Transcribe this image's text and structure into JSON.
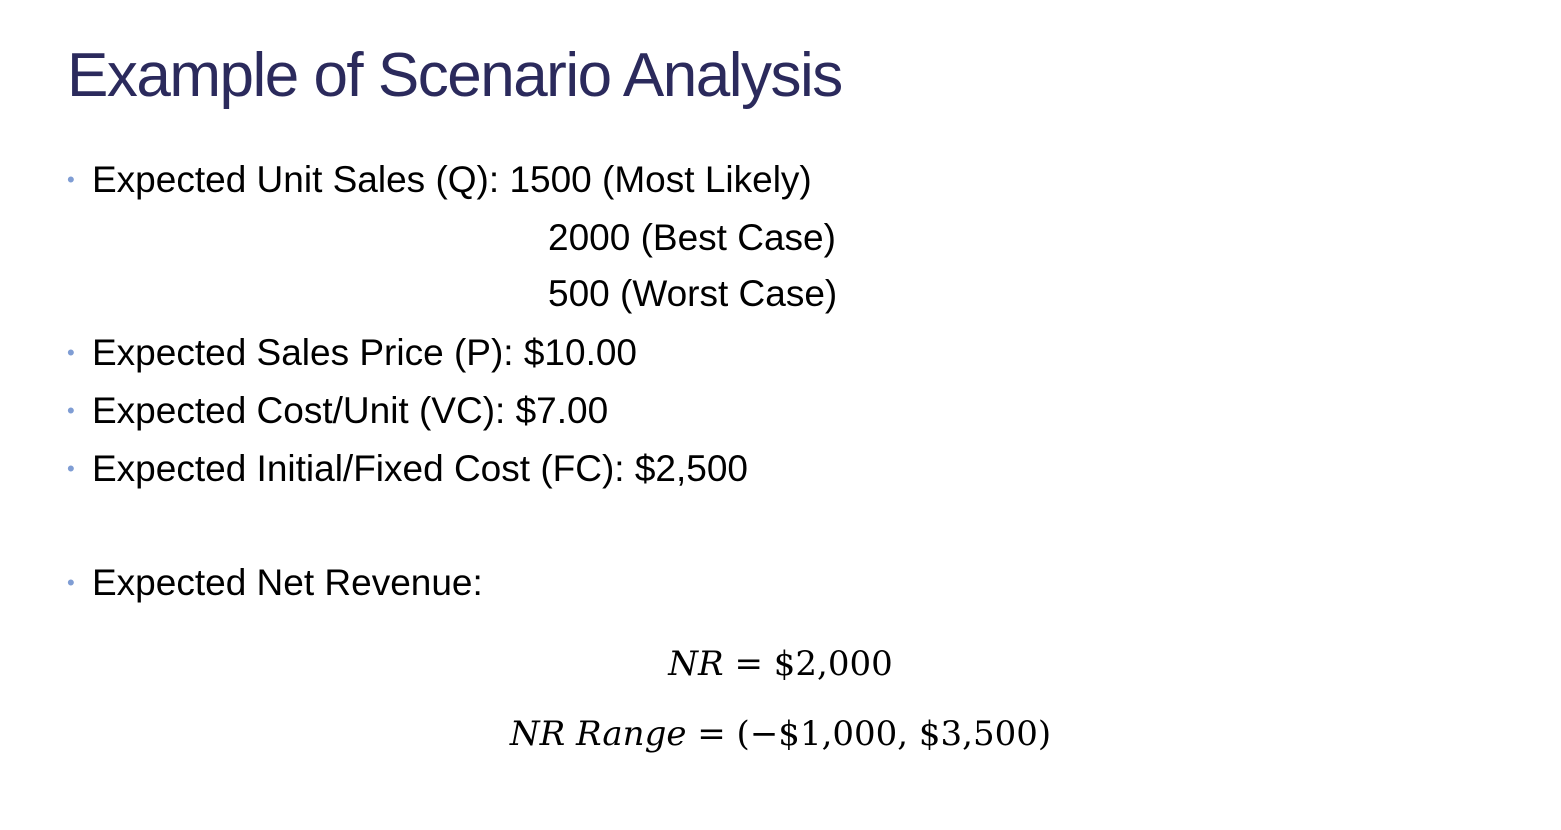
{
  "slide": {
    "title": "Example of Scenario Analysis"
  },
  "bullets": {
    "unit_sales": {
      "label": "Expected Unit Sales (Q): 1500 (Most Likely)",
      "best_case": "2000 (Best Case)",
      "worst_case": "500 (Worst Case)"
    },
    "sales_price": "Expected Sales Price (P): $10.00",
    "cost_per_unit": "Expected Cost/Unit (VC): $7.00",
    "fixed_cost": "Expected Initial/Fixed Cost (FC): $2,500",
    "net_revenue": "Expected Net Revenue:"
  },
  "equations": {
    "nr": {
      "lhs": "NR",
      "rhs": " = $2,000"
    },
    "nr_range": {
      "lhs": "NR Range",
      "rhs": " = (−$1,000, $3,500)"
    }
  },
  "colors": {
    "title": "#2b2a5c",
    "bullet": "#7f9dd4",
    "text": "#000000"
  }
}
